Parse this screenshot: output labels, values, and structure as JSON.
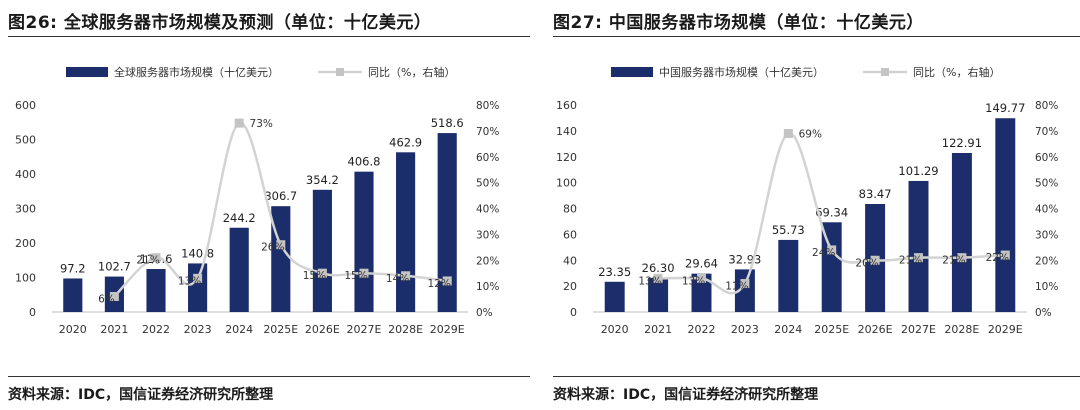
{
  "colors": {
    "bar": "#1c2d6b",
    "line": "#d3d3d3",
    "marker": "#c4c4c4",
    "axis": "#bfbfbf"
  },
  "panels": [
    {
      "fig_title": "图26: 全球服务器市场规模及预测（单位：十亿美元）",
      "source": "资料来源：IDC，国信证券经济研究所整理",
      "chart_data": {
        "type": "bar",
        "categories": [
          "2020",
          "2021",
          "2022",
          "2023",
          "2024",
          "2025E",
          "2026E",
          "2027E",
          "2028E",
          "2029E"
        ],
        "series": [
          {
            "name": "全球服务器市场规模（十亿美元）",
            "type": "bar",
            "axis": "left",
            "values": [
              97.2,
              102.7,
              124.6,
              140.8,
              244.2,
              306.7,
              354.2,
              406.8,
              462.9,
              518.6
            ],
            "labels": [
              "97.2",
              "102.7",
              "124.6",
              "140.8",
              "244.2",
              "306.7",
              "354.2",
              "406.8",
              "462.9",
              "518.6"
            ]
          },
          {
            "name": "同比（%，右轴）",
            "type": "line",
            "axis": "right",
            "values": [
              null,
              6,
              21,
              13,
              73,
              26,
              15,
              15,
              14,
              12
            ],
            "labels": [
              "",
              "6%",
              "21%",
              "13%",
              "73%",
              "26%",
              "15%",
              "15%",
              "14%",
              "12%"
            ]
          }
        ],
        "ylim": [
          0,
          600
        ],
        "yticks": [
          "0",
          "100",
          "200",
          "300",
          "400",
          "500",
          "600"
        ],
        "y2lim": [
          0,
          80
        ],
        "y2ticks": [
          "0%",
          "10%",
          "20%",
          "30%",
          "40%",
          "50%",
          "60%",
          "70%",
          "80%"
        ],
        "legend": "top-center",
        "grid": false
      }
    },
    {
      "fig_title": "图27: 中国服务器市场规模（单位：十亿美元）",
      "source": "资料来源：IDC，国信证券经济研究所整理",
      "chart_data": {
        "type": "bar",
        "categories": [
          "2020",
          "2021",
          "2022",
          "2023",
          "2024",
          "2025E",
          "2026E",
          "2027E",
          "2028E",
          "2029E"
        ],
        "series": [
          {
            "name": "中国服务器市场规模（十亿美元）",
            "type": "bar",
            "axis": "left",
            "values": [
              23.35,
              26.3,
              29.64,
              32.93,
              55.73,
              69.34,
              83.47,
              101.29,
              122.91,
              149.77
            ],
            "labels": [
              "23.35",
              "26.30",
              "29.64",
              "32.93",
              "55.73",
              "69.34",
              "83.47",
              "101.29",
              "122.91",
              "149.77"
            ]
          },
          {
            "name": "同比（%，右轴）",
            "type": "line",
            "axis": "right",
            "values": [
              null,
              13,
              13,
              11,
              69,
              24,
              20,
              21,
              21,
              22
            ],
            "labels": [
              "",
              "13%",
              "13%",
              "11%",
              "69%",
              "24%",
              "20%",
              "21%",
              "21%",
              "22%"
            ]
          }
        ],
        "ylim": [
          0,
          160
        ],
        "yticks": [
          "0",
          "20",
          "40",
          "60",
          "80",
          "100",
          "120",
          "140",
          "160"
        ],
        "y2lim": [
          0,
          80
        ],
        "y2ticks": [
          "0%",
          "10%",
          "20%",
          "30%",
          "40%",
          "50%",
          "60%",
          "70%",
          "80%"
        ],
        "legend": "top-center",
        "grid": false
      }
    }
  ]
}
